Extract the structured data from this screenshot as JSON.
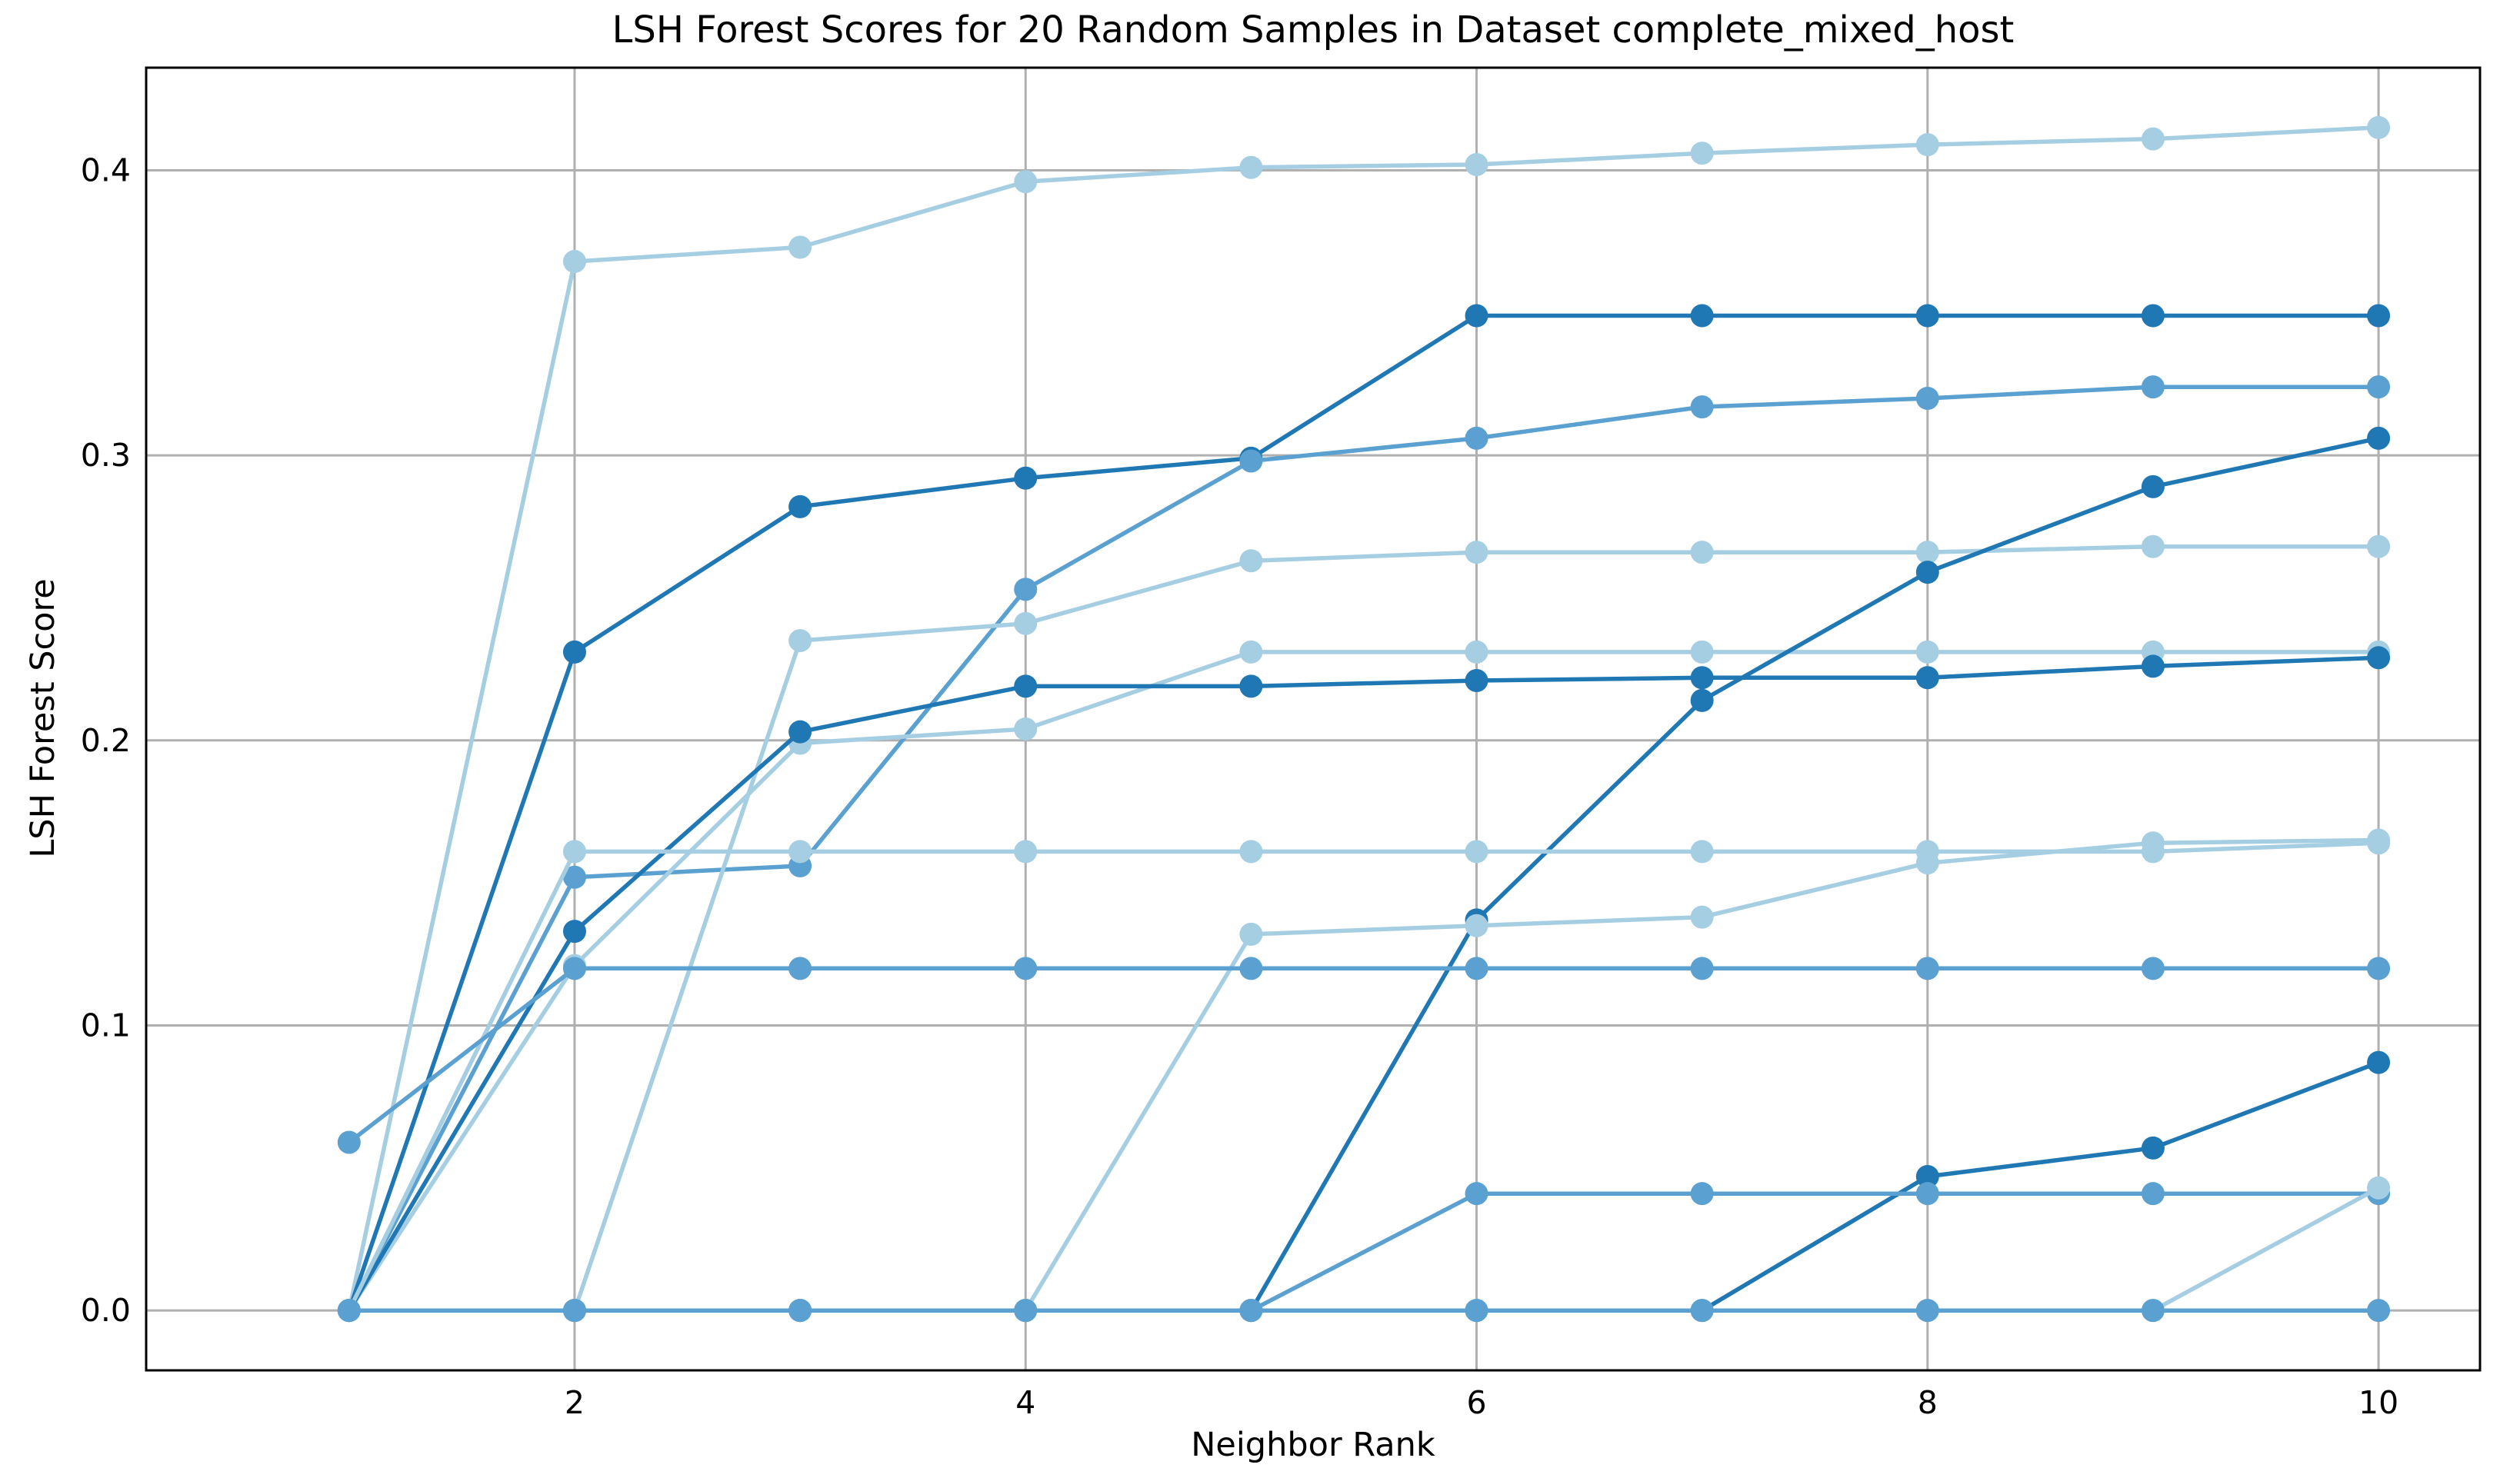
{
  "chart_data": {
    "type": "line",
    "title": "LSH Forest Scores for 20 Random Samples in Dataset complete_mixed_host",
    "xlabel": "Neighbor Rank",
    "ylabel": "LSH Forest Score",
    "xlim": [
      0.1,
      10.45
    ],
    "ylim": [
      -0.021,
      0.436
    ],
    "x": [
      1,
      2,
      3,
      4,
      5,
      6,
      7,
      8,
      9,
      10
    ],
    "xticks": [
      2,
      4,
      6,
      8,
      10
    ],
    "xtick_labels": [
      "2",
      "4",
      "6",
      "8",
      "10"
    ],
    "yticks": [
      0.0,
      0.1,
      0.2,
      0.3,
      0.4
    ],
    "ytick_labels": [
      "0.0",
      "0.1",
      "0.2",
      "0.3",
      "0.4"
    ],
    "grid": true,
    "colors": {
      "light": "#a6cee3",
      "medium": "#5aa0d0",
      "dark": "#1f77b4",
      "grid": "#b0b0b0"
    },
    "series": [
      {
        "color": "light",
        "values": [
          0,
          0.368,
          0.373,
          0.396,
          0.401,
          0.402,
          0.406,
          0.409,
          0.411,
          0.415
        ]
      },
      {
        "color": "dark",
        "values": [
          0,
          0.231,
          0.282,
          0.292,
          0.299,
          0.349,
          0.349,
          0.349,
          0.349,
          0.349
        ]
      },
      {
        "color": "medium",
        "values": [
          0,
          0.152,
          0.156,
          0.253,
          0.298,
          0.306,
          0.317,
          0.32,
          0.324,
          0.324
        ]
      },
      {
        "color": "light",
        "values": [
          0,
          0,
          0.235,
          0.241,
          0.263,
          0.266,
          0.266,
          0.266,
          0.268,
          0.268
        ]
      },
      {
        "color": "light",
        "values": [
          0,
          0.121,
          0.199,
          0.204,
          0.231,
          0.231,
          0.231,
          0.231,
          0.231,
          0.231
        ]
      },
      {
        "color": "dark",
        "values": [
          0,
          0.133,
          0.203,
          0.219,
          0.219,
          0.221,
          0.222,
          0.222,
          0.226,
          0.229
        ]
      },
      {
        "color": "dark",
        "values": [
          0,
          0,
          0,
          0,
          0,
          0.137,
          0.214,
          0.259,
          0.289,
          0.306
        ]
      },
      {
        "color": "light",
        "values": [
          0,
          0.161,
          0.161,
          0.161,
          0.161,
          0.161,
          0.161,
          0.161,
          0.161,
          0.164
        ]
      },
      {
        "color": "light",
        "values": [
          0,
          0,
          0,
          0,
          0.132,
          0.135,
          0.138,
          0.157,
          0.164,
          0.165
        ]
      },
      {
        "color": "medium",
        "values": [
          0.059,
          0.12,
          0.12,
          0.12,
          0.12,
          0.12,
          0.12,
          0.12,
          0.12,
          0.12
        ]
      },
      {
        "color": "dark",
        "values": [
          0,
          0,
          0,
          0,
          0,
          0,
          0,
          0.047,
          0.057,
          0.087
        ]
      },
      {
        "color": "medium",
        "values": [
          0,
          0,
          0,
          0,
          0,
          0.041,
          0.041,
          0.041,
          0.041,
          0.041
        ]
      },
      {
        "color": "light",
        "values": [
          0,
          0,
          0,
          0,
          0,
          0,
          0,
          0,
          0,
          0.043
        ]
      },
      {
        "color": "medium",
        "values": [
          0,
          0,
          0,
          0,
          0,
          0,
          0,
          0,
          0,
          0
        ]
      }
    ]
  }
}
